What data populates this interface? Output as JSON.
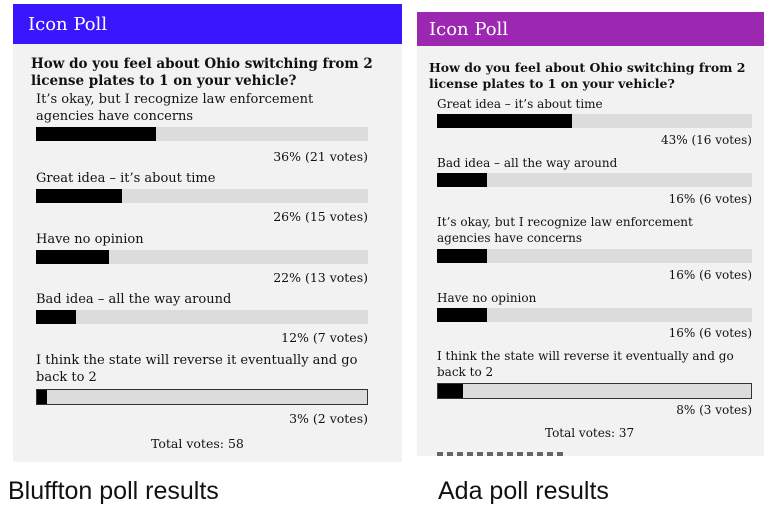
{
  "left_poll": {
    "header": "Icon Poll",
    "header_color": "#3a16ff",
    "question": "How do you feel about Ohio switching from 2 license plates to 1 on your vehicle?",
    "options": [
      {
        "label": "It’s okay, but I recognize law enforcement agencies have concerns",
        "percent": 36,
        "result": "36% (21 votes)"
      },
      {
        "label": "Great idea – it’s about time",
        "percent": 26,
        "result": "26% (15 votes)"
      },
      {
        "label": "Have no opinion",
        "percent": 22,
        "result": "22% (13 votes)"
      },
      {
        "label": "Bad idea – all the way around",
        "percent": 12,
        "result": "12% (7 votes)"
      },
      {
        "label": "I think the state will reverse it eventually and go back to 2",
        "percent": 3,
        "result": "3% (2 votes)"
      }
    ],
    "total": "Total votes: 58",
    "caption": "Bluffton poll results"
  },
  "right_poll": {
    "header": "Icon Poll",
    "header_color": "#9c27b0",
    "question": "How do you feel about Ohio switching from 2 license plates to 1 on your vehicle?",
    "options": [
      {
        "label": "Great idea – it’s about time",
        "percent": 43,
        "result": "43% (16 votes)"
      },
      {
        "label": "Bad idea – all the way around",
        "percent": 16,
        "result": "16% (6 votes)"
      },
      {
        "label": "It’s okay, but I recognize law enforcement agencies have concerns",
        "percent": 16,
        "result": "16% (6 votes)"
      },
      {
        "label": "Have no opinion",
        "percent": 16,
        "result": "16% (6 votes)"
      },
      {
        "label": "I think the state will reverse it eventually and go back to 2",
        "percent": 8,
        "result": "8% (3 votes)"
      }
    ],
    "total": "Total votes: 37",
    "caption": "Ada poll results"
  }
}
